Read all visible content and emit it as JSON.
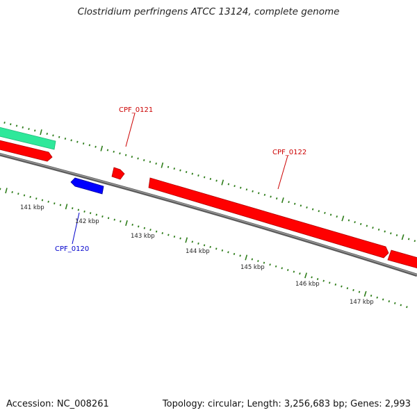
{
  "title": "Clostridium perfringens ATCC 13124, complete genome",
  "accession_label": "Accession: NC_008261",
  "summary_label": "Topology: circular; Length: 3,256,683 bp; Genes: 2,993",
  "colors": {
    "backbone": "#808080",
    "tick": "#2e7d1a",
    "gene_forward": "#ff0000",
    "gene_reverse": "#0000ff",
    "gene_other": "#2ee89a"
  },
  "scale": {
    "labels": [
      "141 kbp",
      "142 kbp",
      "143 kbp",
      "144 kbp",
      "145 kbp",
      "146 kbp",
      "147 kbp"
    ]
  },
  "genes": [
    {
      "name": "",
      "strand": "other",
      "icon": "teal-feature-bar"
    },
    {
      "name": "",
      "strand": "+",
      "icon": "red-arrow"
    },
    {
      "name": "CPF_0121",
      "strand": "+",
      "icon": "red-arrow"
    },
    {
      "name": "CPF_0120",
      "strand": "-",
      "icon": "blue-arrow"
    },
    {
      "name": "CPF_0122",
      "strand": "+",
      "icon": "red-arrow"
    },
    {
      "name": "",
      "strand": "+",
      "icon": "red-arrow"
    }
  ]
}
